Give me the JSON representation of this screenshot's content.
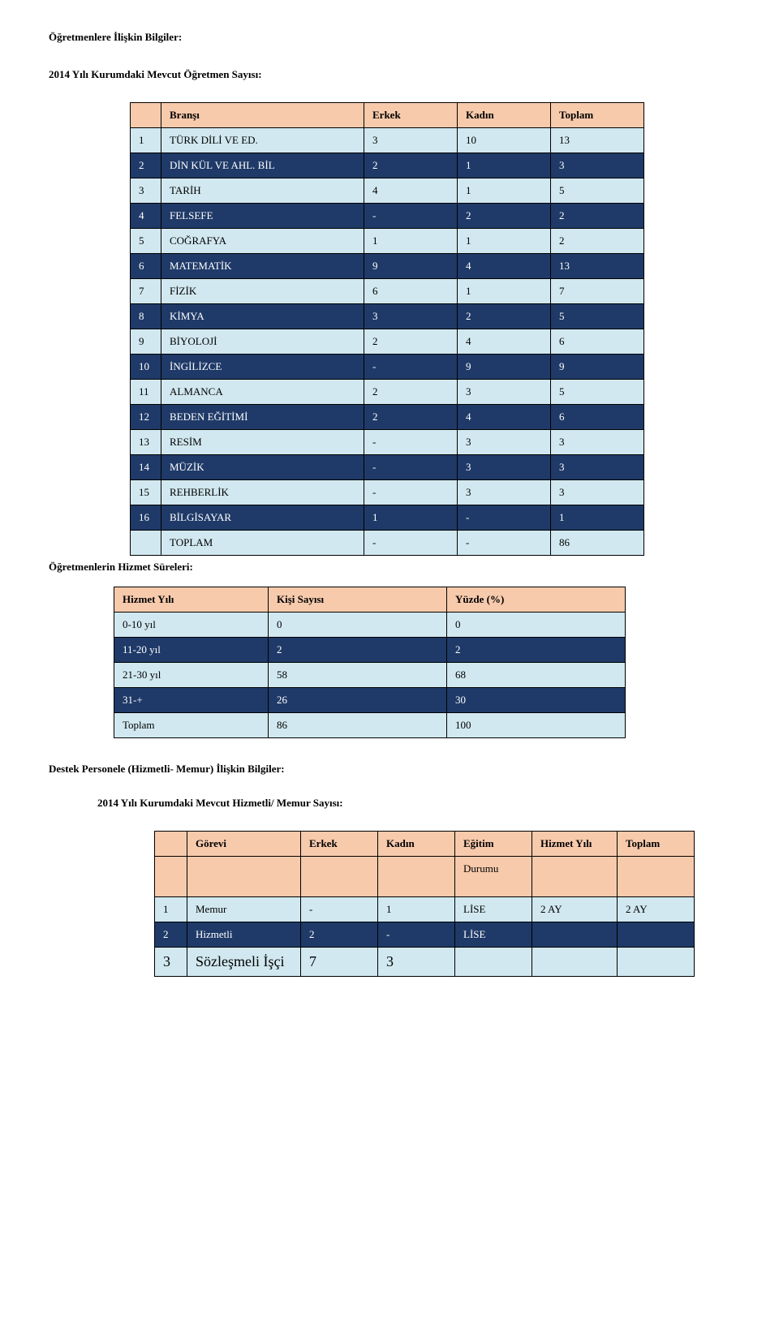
{
  "headings": {
    "teachers_info": "Öğretmenlere İlişkin Bilgiler:",
    "teacher_count": "2014 Yılı Kurumdaki Mevcut Öğretmen Sayısı:",
    "service_years": "Öğretmenlerin Hizmet Süreleri:",
    "support_staff": "Destek Personele (Hizmetli- Memur) İlişkin Bilgiler:",
    "staff_count": "2014 Yılı Kurumdaki Mevcut Hizmetli/ Memur Sayısı:"
  },
  "table1": {
    "header": {
      "bransi": "Branşı",
      "erkek": "Erkek",
      "kadin": "Kadın",
      "toplam": "Toplam"
    },
    "rows": [
      {
        "n": "1",
        "name": "TÜRK DİLİ VE ED.",
        "e": "3",
        "k": "10",
        "t": "13",
        "style": "light"
      },
      {
        "n": "2",
        "name": "DİN KÜL VE AHL. BİL",
        "e": "2",
        "k": "1",
        "t": "3",
        "style": "dark"
      },
      {
        "n": "3",
        "name": "TARİH",
        "e": "4",
        "k": "1",
        "t": "5",
        "style": "light"
      },
      {
        "n": "4",
        "name": "FELSEFE",
        "e": "-",
        "k": "2",
        "t": "2",
        "style": "dark"
      },
      {
        "n": "5",
        "name": "COĞRAFYA",
        "e": "1",
        "k": "1",
        "t": "2",
        "style": "light"
      },
      {
        "n": "6",
        "name": "MATEMATİK",
        "e": "9",
        "k": "4",
        "t": "13",
        "style": "dark"
      },
      {
        "n": "7",
        "name": "FİZİK",
        "e": "6",
        "k": "1",
        "t": "7",
        "style": "light"
      },
      {
        "n": "8",
        "name": "KİMYA",
        "e": "3",
        "k": "2",
        "t": "5",
        "style": "dark"
      },
      {
        "n": "9",
        "name": "BİYOLOJİ",
        "e": "2",
        "k": "4",
        "t": "6",
        "style": "light"
      },
      {
        "n": "10",
        "name": "İNGİLİZCE",
        "e": "-",
        "k": "9",
        "t": "9",
        "style": "dark"
      },
      {
        "n": "11",
        "name": "ALMANCA",
        "e": "2",
        "k": "3",
        "t": "5",
        "style": "light"
      },
      {
        "n": "12",
        "name": "BEDEN EĞİTİMİ",
        "e": "2",
        "k": "4",
        "t": "6",
        "style": "dark"
      },
      {
        "n": "13",
        "name": "RESİM",
        "e": "-",
        "k": "3",
        "t": "3",
        "style": "light"
      },
      {
        "n": "14",
        "name": "MÜZİK",
        "e": "-",
        "k": "3",
        "t": "3",
        "style": "dark"
      },
      {
        "n": "15",
        "name": "REHBERLİK",
        "e": "-",
        "k": "3",
        "t": "3",
        "style": "light"
      },
      {
        "n": "16",
        "name": "BİLGİSAYAR",
        "e": "1",
        "k": "-",
        "t": "1",
        "style": "dark"
      }
    ],
    "total": {
      "label": "TOPLAM",
      "e": "-",
      "k": "-",
      "t": "86"
    }
  },
  "table2": {
    "header": {
      "hizmet_yili": "Hizmet Yılı",
      "kisi": "Kişi Sayısı",
      "yuzde": "Yüzde (%)"
    },
    "rows": [
      {
        "range": "0-10 yıl",
        "count": "0",
        "pct": "0",
        "style": "light"
      },
      {
        "range": "11-20 yıl",
        "count": "2",
        "pct": "2",
        "style": "dark"
      },
      {
        "range": "21-30 yıl",
        "count": "58",
        "pct": "68",
        "style": "light"
      },
      {
        "range": "31-+",
        "count": "26",
        "pct": "30",
        "style": "dark"
      },
      {
        "range": "Toplam",
        "count": "86",
        "pct": "100",
        "style": "light"
      }
    ]
  },
  "table3": {
    "header": {
      "gorevi": "Görevi",
      "erkek": "Erkek",
      "kadin": "Kadın",
      "egitim": "Eğitim",
      "hizmet": "Hizmet Yılı",
      "toplam": "Toplam",
      "durumu": "Durumu"
    },
    "rows": [
      {
        "n": "1",
        "gorev": "Memur",
        "e": "-",
        "k": "1",
        "eg": "LİSE",
        "hy": "2 AY",
        "t": "2 AY",
        "style": "light"
      },
      {
        "n": "2",
        "gorev": "Hizmetli",
        "e": "2",
        "k": "-",
        "eg": "LİSE",
        "hy": "",
        "t": "",
        "style": "dark"
      },
      {
        "n": "3",
        "gorev": "Sözleşmeli İşçi",
        "e": "7",
        "k": "3",
        "eg": "",
        "hy": "",
        "t": "",
        "style": "light",
        "big": true
      }
    ]
  }
}
